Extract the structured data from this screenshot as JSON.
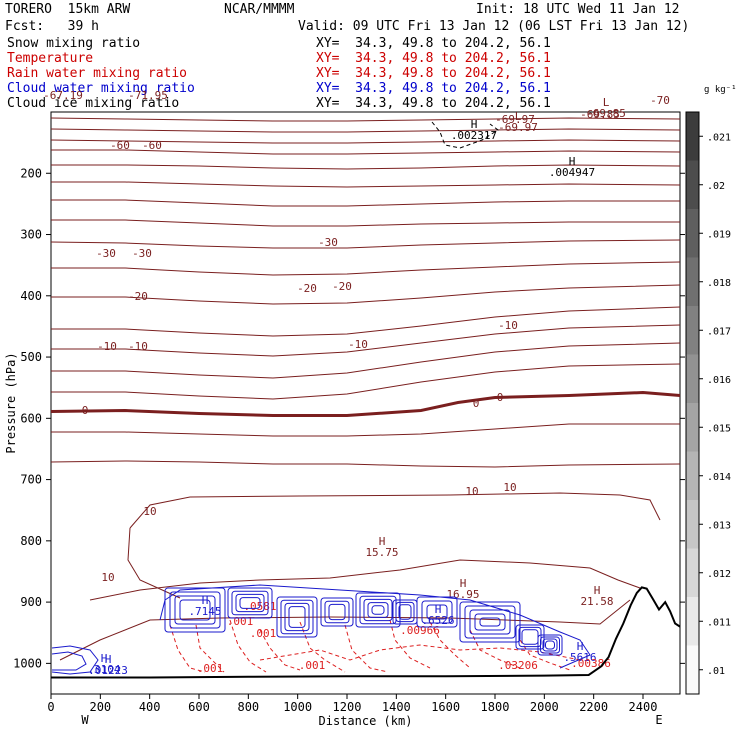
{
  "header": {
    "model": "TORERO  15km ARW",
    "org": "NCAR/MMMM",
    "init": "Init: 18 UTC Wed 11 Jan 12",
    "fcst": "Fcst:   39 h",
    "valid": "Valid: 09 UTC Fri 13 Jan 12 (06 LST Fri 13 Jan 12)"
  },
  "fields": [
    {
      "name": "Snow mixing ratio",
      "xy": "XY=  34.3, 49.8 to 204.2, 56.1",
      "color": "#000000"
    },
    {
      "name": "Temperature",
      "xy": "XY=  34.3, 49.8 to 204.2, 56.1",
      "color": "#cc0000"
    },
    {
      "name": "Rain water mixing ratio",
      "xy": "XY=  34.3, 49.8 to 204.2, 56.1",
      "color": "#cc0000"
    },
    {
      "name": "Cloud water mixing ratio",
      "xy": "XY=  34.3, 49.8 to 204.2, 56.1",
      "color": "#0000cc"
    },
    {
      "name": "Cloud ice mixing ratio",
      "xy": "XY=  34.3, 49.8 to 204.2, 56.1",
      "color": "#000000"
    }
  ],
  "colors": {
    "temperature": "#7a1f1f",
    "rain": "#dd2020",
    "cloud_water": "#1a1acc",
    "terrain": "#000000"
  },
  "chart_data": {
    "type": "contour",
    "xlabel": "Distance (km)",
    "ylabel": "Pressure (hPa)",
    "xlim": [
      0,
      2550
    ],
    "ylim": [
      1050,
      100
    ],
    "x_ticks": [
      0,
      200,
      400,
      600,
      800,
      1000,
      1200,
      1400,
      1600,
      1800,
      2000,
      2200,
      2400
    ],
    "y_ticks": [
      200,
      300,
      400,
      500,
      600,
      700,
      800,
      900,
      1000
    ],
    "endpoints": [
      "W",
      "E"
    ],
    "colorbar": {
      "unit": "g kg⁻¹",
      "ticks": [
        ".021",
        ".02",
        ".019",
        ".018",
        ".017",
        ".016",
        ".015",
        ".014",
        ".013",
        ".012",
        ".011",
        ".01"
      ]
    },
    "temperature_labels": [
      "-67.19",
      "-71.95",
      "-69.97",
      "-69.85",
      "-70",
      "-60",
      "-60",
      "-30",
      "-30",
      "-30",
      "-20",
      "-20",
      "-20",
      "-10",
      "-10",
      "-10",
      "-10",
      "0",
      "0",
      "0",
      "10",
      "10",
      "10",
      "10"
    ],
    "extrema": [
      {
        "type": "H",
        "value": ".002317"
      },
      {
        "type": "H",
        "value": ".004947"
      },
      {
        "type": "L",
        "value": "-69.97"
      },
      {
        "type": "L",
        "value": "-69.85"
      },
      {
        "type": "H",
        "value": "15.75"
      },
      {
        "type": "H",
        "value": "16.95"
      },
      {
        "type": "H",
        "value": "21.58"
      },
      {
        "type": "H",
        "value": ".7145"
      },
      {
        "type": "H",
        "value": ".6526"
      },
      {
        "type": "H",
        "value": ".01223"
      },
      {
        "type": "H",
        "value": ".3104"
      },
      {
        "type": "H",
        "value": ".5616"
      }
    ],
    "rain_labels": [
      ".001",
      ".001",
      ".001",
      ".001",
      ".00966",
      ".03206",
      ".00386",
      ".0581"
    ],
    "terrain_pressure": [
      [
        0,
        1023
      ],
      [
        400,
        1023
      ],
      [
        800,
        1022
      ],
      [
        1200,
        1021
      ],
      [
        1600,
        1021
      ],
      [
        2000,
        1020
      ],
      [
        2180,
        1019
      ],
      [
        2230,
        1005
      ],
      [
        2260,
        990
      ],
      [
        2290,
        960
      ],
      [
        2320,
        935
      ],
      [
        2350,
        905
      ],
      [
        2375,
        885
      ],
      [
        2395,
        876
      ],
      [
        2415,
        878
      ],
      [
        2440,
        895
      ],
      [
        2465,
        912
      ],
      [
        2490,
        900
      ],
      [
        2510,
        915
      ],
      [
        2530,
        935
      ],
      [
        2550,
        940
      ]
    ]
  }
}
